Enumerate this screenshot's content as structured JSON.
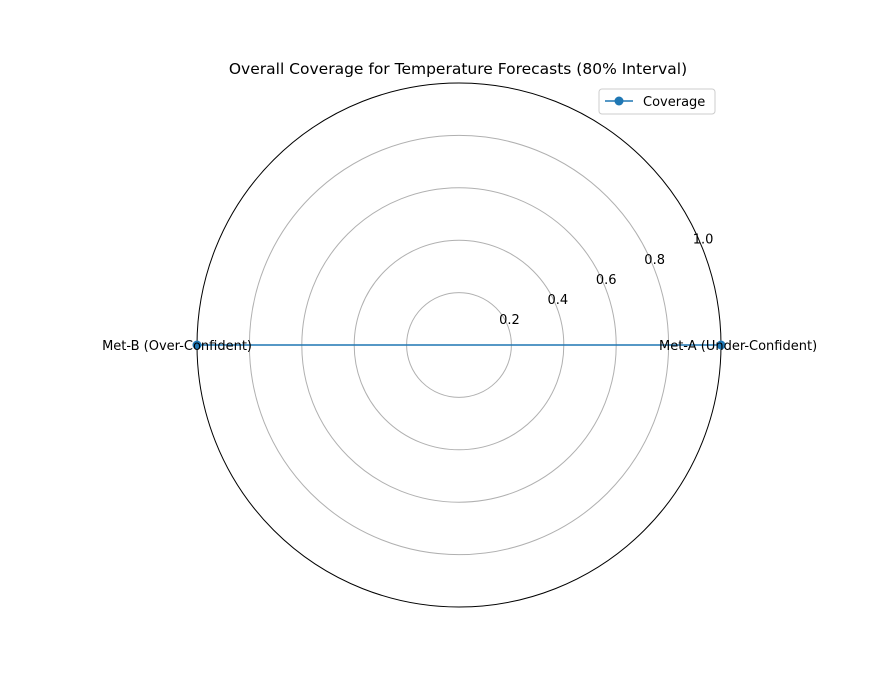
{
  "chart_data": {
    "type": "radar",
    "title": "Overall Coverage for Temperature Forecasts (80% Interval)",
    "categories": [
      "Met-A (Under-Confident)",
      "Met-B (Over-Confident)"
    ],
    "series": [
      {
        "name": "Coverage",
        "values": [
          1.0,
          1.0
        ],
        "color": "#1f77b4"
      }
    ],
    "rlim": [
      0,
      1.0
    ],
    "radial_ticks": [
      "0.2",
      "0.4",
      "0.6",
      "0.8",
      "1.0"
    ],
    "radial_tick_values": [
      0.2,
      0.4,
      0.6,
      0.8,
      1.0
    ],
    "grid": true,
    "legend_position": "top-right"
  }
}
